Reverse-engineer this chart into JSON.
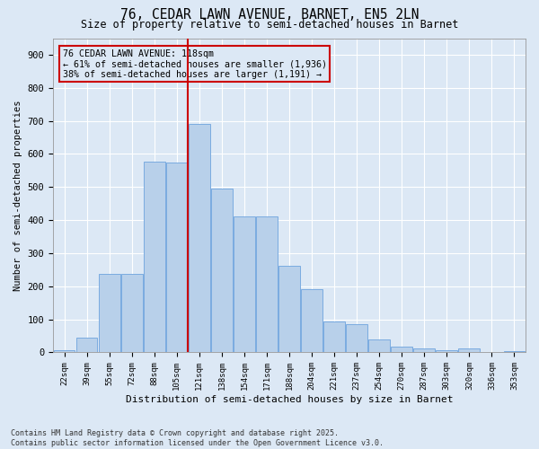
{
  "title": "76, CEDAR LAWN AVENUE, BARNET, EN5 2LN",
  "subtitle": "Size of property relative to semi-detached houses in Barnet",
  "xlabel": "Distribution of semi-detached houses by size in Barnet",
  "ylabel": "Number of semi-detached properties",
  "categories": [
    "22sqm",
    "39sqm",
    "55sqm",
    "72sqm",
    "88sqm",
    "105sqm",
    "121sqm",
    "138sqm",
    "154sqm",
    "171sqm",
    "188sqm",
    "204sqm",
    "221sqm",
    "237sqm",
    "254sqm",
    "270sqm",
    "287sqm",
    "303sqm",
    "320sqm",
    "336sqm",
    "353sqm"
  ],
  "values": [
    8,
    45,
    238,
    238,
    577,
    575,
    692,
    495,
    410,
    410,
    262,
    192,
    93,
    85,
    40,
    18,
    12,
    7,
    12,
    2,
    5
  ],
  "bar_color": "#b8d0ea",
  "bar_edge_color": "#7aabe0",
  "vline_index": 6,
  "vline_color": "#cc0000",
  "annotation_text": "76 CEDAR LAWN AVENUE: 118sqm\n← 61% of semi-detached houses are smaller (1,936)\n38% of semi-detached houses are larger (1,191) →",
  "annotation_box_color": "#cc0000",
  "ylim": [
    0,
    950
  ],
  "yticks": [
    0,
    100,
    200,
    300,
    400,
    500,
    600,
    700,
    800,
    900
  ],
  "background_color": "#dce8f5",
  "grid_color": "#ffffff",
  "footer_line1": "Contains HM Land Registry data © Crown copyright and database right 2025.",
  "footer_line2": "Contains public sector information licensed under the Open Government Licence v3.0."
}
